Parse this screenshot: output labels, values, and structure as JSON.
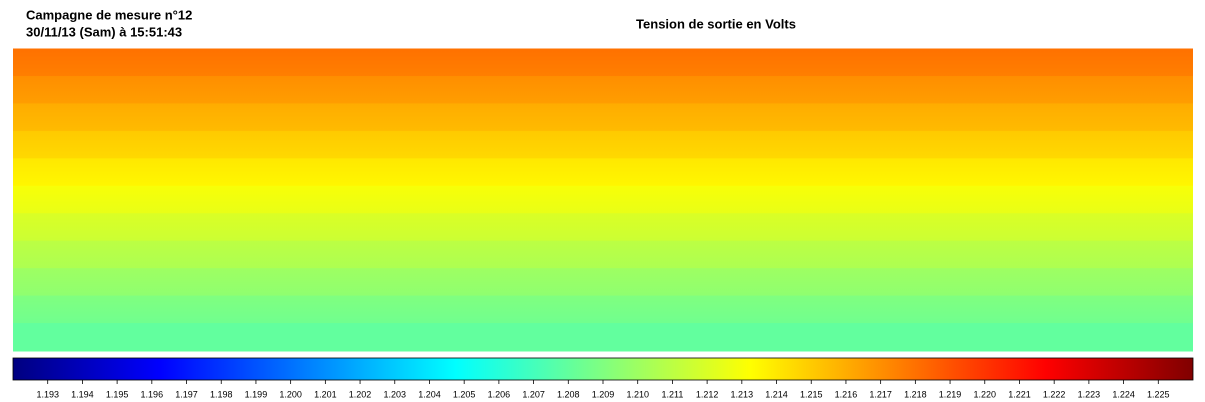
{
  "chart_data": {
    "type": "heatmap",
    "title": "Tension de sortie en Volts",
    "header": [
      "Campagne de mesure n°12",
      "30/11/13 (Sam) à 15:51:43"
    ],
    "values": [
      1.218,
      1.217,
      1.216,
      1.215,
      1.214,
      1.213,
      1.212,
      1.211,
      1.21,
      1.209,
      1.208
    ],
    "colormap": "jet",
    "clim": [
      1.192,
      1.226
    ],
    "cticks": [
      1.193,
      1.194,
      1.195,
      1.196,
      1.197,
      1.198,
      1.199,
      {
        "value": 1.2,
        "label": "1.200"
      },
      1.201,
      1.202,
      1.203,
      1.204,
      1.205,
      1.206,
      1.207,
      1.208,
      1.209,
      {
        "value": 1.21,
        "label": "1.210"
      },
      1.211,
      1.212,
      1.213,
      1.214,
      1.215,
      1.216,
      1.217,
      1.218,
      1.219,
      {
        "value": 1.22,
        "label": "1.220"
      },
      1.221,
      1.222,
      1.223,
      1.224,
      1.225
    ]
  }
}
